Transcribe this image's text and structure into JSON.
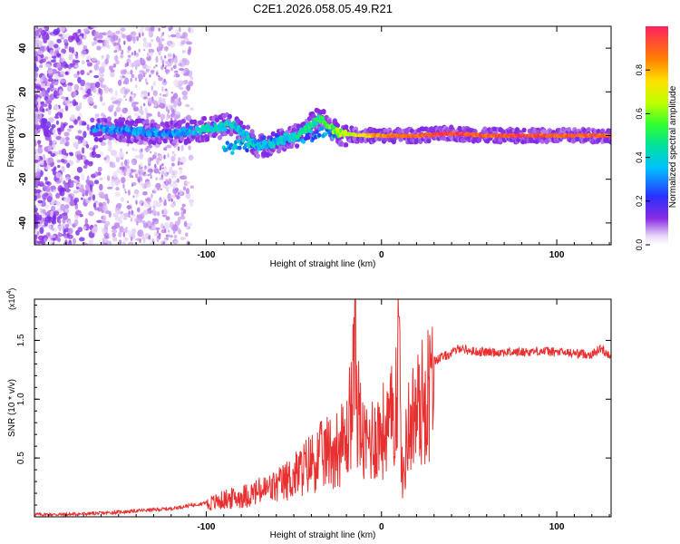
{
  "figure_title": "C2E1.2026.058.05.49.R21",
  "chart_data": [
    {
      "type": "heatmap",
      "title": "C2E1.2026.058.05.49.R21",
      "xlabel": "Height of straight line (km)",
      "ylabel": "Frequency (Hz)",
      "xlim": [
        -198,
        131
      ],
      "ylim": [
        -50,
        50
      ],
      "xticks": [
        -100,
        0,
        100
      ],
      "xtick_labels": [
        "-100",
        "0",
        "100"
      ],
      "yticks": [
        -40,
        -20,
        0,
        20,
        40
      ],
      "ytick_labels": [
        "-40",
        "-20",
        "0",
        "20",
        "40"
      ],
      "colorbar": {
        "label": "Normalized spectral amplitude",
        "range": [
          0,
          1
        ],
        "ticks": [
          0.0,
          0.2,
          0.4,
          0.6,
          0.8
        ],
        "tick_labels": [
          "0.0",
          "0.2",
          "0.4",
          "0.6",
          "0.8"
        ],
        "colormap": "rainbow"
      },
      "ridge": {
        "description_points": [
          {
            "x": -160,
            "y": 3,
            "amp": 0.3
          },
          {
            "x": -140,
            "y": 2,
            "amp": 0.3
          },
          {
            "x": -120,
            "y": 1,
            "amp": 0.3
          },
          {
            "x": -100,
            "y": 3,
            "amp": 0.4
          },
          {
            "x": -85,
            "y": 5,
            "amp": 0.4
          },
          {
            "x": -70,
            "y": -5,
            "amp": 0.35
          },
          {
            "x": -50,
            "y": -1,
            "amp": 0.4
          },
          {
            "x": -35,
            "y": 8,
            "amp": 0.5
          },
          {
            "x": -25,
            "y": 1,
            "amp": 0.6
          },
          {
            "x": -10,
            "y": 0,
            "amp": 0.75
          },
          {
            "x": 0,
            "y": 0,
            "amp": 0.85
          },
          {
            "x": 20,
            "y": 0,
            "amp": 0.9
          },
          {
            "x": 40,
            "y": 1,
            "amp": 0.95
          },
          {
            "x": 60,
            "y": 0,
            "amp": 0.9
          },
          {
            "x": 80,
            "y": 0,
            "amp": 0.95
          },
          {
            "x": 100,
            "y": 0,
            "amp": 0.9
          },
          {
            "x": 130,
            "y": 0,
            "amp": 0.9
          }
        ]
      }
    },
    {
      "type": "line",
      "xlabel": "Height of straight line (km)",
      "ylabel": "SNR (10 * v/v)",
      "y_multiplier_label": "(x10",
      "y_multiplier_exp": "4",
      "xlim": [
        -198,
        131
      ],
      "ylim": [
        0,
        1.85
      ],
      "xticks": [
        -100,
        0,
        100
      ],
      "xtick_labels": [
        "-100",
        "0",
        "100"
      ],
      "yticks": [
        0.5,
        1.0,
        1.5
      ],
      "ytick_labels": [
        "0.5",
        "1.0",
        "1.5"
      ],
      "line_color": "#e83030",
      "series": [
        {
          "name": "SNR",
          "x": [
            -198,
            -180,
            -160,
            -140,
            -120,
            -100,
            -90,
            -80,
            -70,
            -60,
            -50,
            -40,
            -35,
            -30,
            -25,
            -20,
            -16,
            -15,
            -14,
            -12,
            -10,
            -5,
            0,
            5,
            8,
            9,
            10,
            11,
            12,
            15,
            20,
            25,
            30,
            40,
            45,
            50,
            60,
            70,
            80,
            90,
            100,
            110,
            120,
            125,
            131
          ],
          "values": [
            0.02,
            0.02,
            0.03,
            0.05,
            0.07,
            0.12,
            0.17,
            0.2,
            0.25,
            0.3,
            0.4,
            0.55,
            0.6,
            0.65,
            0.7,
            0.75,
            1.3,
            1.85,
            1.2,
            0.9,
            0.7,
            0.8,
            0.85,
            0.9,
            1.2,
            1.45,
            1.7,
            0.9,
            0.3,
            0.9,
            1.05,
            1.2,
            1.33,
            1.39,
            1.44,
            1.41,
            1.4,
            1.4,
            1.4,
            1.41,
            1.4,
            1.39,
            1.38,
            1.43,
            1.37
          ]
        }
      ]
    }
  ]
}
